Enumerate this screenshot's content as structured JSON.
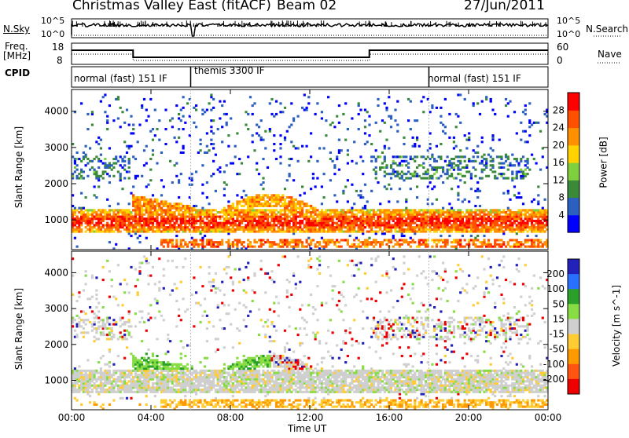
{
  "header": {
    "title": "Christmas Valley East (fitACF)",
    "beam": "Beam 02",
    "date": "27/Jun/2011"
  },
  "left_labels": {
    "nsky": "N.Sky",
    "freq_line1": "Freq.",
    "freq_line2": "[MHz]",
    "cpid": "CPID"
  },
  "right_labels": {
    "nsearch": "N.Search",
    "nave": "Nave"
  },
  "noise_panel": {
    "left_ticks": [
      "10^5",
      "10^0"
    ],
    "right_ticks": [
      "10^5",
      "10^0"
    ]
  },
  "freq_panel": {
    "left_ticks": [
      "18",
      "8"
    ],
    "right_ticks": [
      "60",
      "0"
    ]
  },
  "cpid_panel": {
    "segments": [
      {
        "label": "normal (fast) 151 IF",
        "start_h": 0,
        "end_h": 6.0
      },
      {
        "label": "themis 3300 IF",
        "start_h": 6.0,
        "end_h": 18.0
      },
      {
        "label": "normal (fast) 151 IF",
        "start_h": 18.0,
        "end_h": 24
      }
    ]
  },
  "colors": {
    "power": [
      "#0000ff",
      "#2b5fc0",
      "#3a8a3a",
      "#7fcf3f",
      "#ffd200",
      "#ff9000",
      "#ff5000",
      "#ff0000"
    ],
    "velocity": [
      "#2222bb",
      "#2a70ff",
      "#2aa02a",
      "#88dd44",
      "#cfcfcf",
      "#ffcc33",
      "#ff9900",
      "#ff5511",
      "#ee0000"
    ]
  },
  "chart_data": [
    {
      "type": "heatmap",
      "name": "power",
      "ylabel": "Slant Range [km]",
      "ylim": [
        180,
        4600
      ],
      "yticks": [
        "1000",
        "2000",
        "3000",
        "4000"
      ],
      "colorbar_label": "Power [dB]",
      "colorbar_ticks": [
        "4",
        "8",
        "12",
        "16",
        "20",
        "24",
        "28"
      ]
    },
    {
      "type": "heatmap",
      "name": "velocity",
      "ylabel": "Slant Range [km]",
      "ylim": [
        180,
        4600
      ],
      "yticks": [
        "1000",
        "2000",
        "3000",
        "4000"
      ],
      "colorbar_label": "Velocity [m s^-1]",
      "colorbar_ticks": [
        "200",
        "100",
        "50",
        "15",
        "-15",
        "-50",
        "-100",
        "-200"
      ]
    }
  ],
  "x_axis": {
    "label": "Time UT",
    "ticks": [
      "00:00",
      "04:00",
      "08:00",
      "12:00",
      "16:00",
      "20:00",
      "00:00"
    ]
  }
}
